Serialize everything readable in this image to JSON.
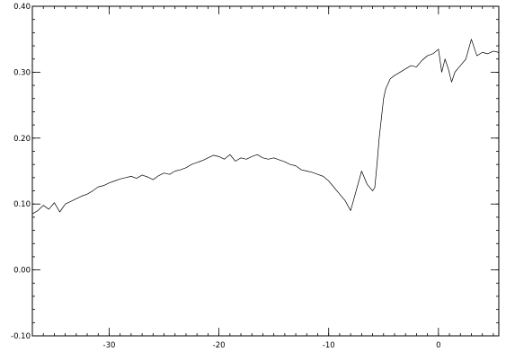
{
  "chart_data": {
    "type": "line",
    "title": "",
    "xlabel": "",
    "ylabel": "",
    "xlim": [
      -37,
      5.5
    ],
    "ylim": [
      -0.1,
      0.4
    ],
    "grid": false,
    "x_major_ticks": [
      -30,
      -20,
      -10,
      0
    ],
    "x_tick_labels": [
      "-30",
      "-20",
      "-10",
      "0"
    ],
    "x_minor_step": 1,
    "y_major_ticks": [
      -0.1,
      0.0,
      0.1,
      0.2,
      0.3,
      0.4
    ],
    "y_tick_labels": [
      "-0.10",
      "0.00",
      "0.10",
      "0.20",
      "0.30",
      "0.40"
    ],
    "y_minor_step": 0.02,
    "series": [
      {
        "color": "#000000",
        "x": [
          -37.0,
          -36.5,
          -36.0,
          -35.5,
          -35.0,
          -34.5,
          -34.0,
          -33.5,
          -33.0,
          -32.5,
          -32.0,
          -31.5,
          -31.0,
          -30.5,
          -30.0,
          -29.5,
          -29.0,
          -28.5,
          -28.0,
          -27.5,
          -27.0,
          -26.5,
          -26.0,
          -25.5,
          -25.0,
          -24.5,
          -24.0,
          -23.5,
          -23.0,
          -22.5,
          -22.0,
          -21.5,
          -21.0,
          -20.5,
          -20.0,
          -19.5,
          -19.0,
          -18.5,
          -18.0,
          -17.5,
          -17.0,
          -16.5,
          -16.0,
          -15.5,
          -15.0,
          -14.5,
          -14.0,
          -13.5,
          -13.0,
          -12.5,
          -12.0,
          -11.5,
          -11.0,
          -10.5,
          -10.0,
          -9.5,
          -9.0,
          -8.5,
          -8.0,
          -7.5,
          -7.0,
          -6.5,
          -6.0,
          -5.8,
          -5.6,
          -5.4,
          -5.2,
          -5.0,
          -4.8,
          -4.6,
          -4.4,
          -4.0,
          -3.5,
          -3.0,
          -2.5,
          -2.0,
          -1.5,
          -1.0,
          -0.5,
          0.0,
          0.3,
          0.6,
          0.9,
          1.2,
          1.5,
          2.0,
          2.5,
          3.0,
          3.5,
          4.0,
          4.5,
          5.0,
          5.5
        ],
        "y": [
          0.085,
          0.09,
          0.098,
          0.092,
          0.102,
          0.088,
          0.1,
          0.104,
          0.108,
          0.112,
          0.115,
          0.12,
          0.126,
          0.128,
          0.132,
          0.135,
          0.138,
          0.14,
          0.142,
          0.139,
          0.144,
          0.141,
          0.137,
          0.143,
          0.147,
          0.145,
          0.15,
          0.152,
          0.155,
          0.16,
          0.163,
          0.166,
          0.17,
          0.174,
          0.172,
          0.168,
          0.175,
          0.165,
          0.17,
          0.168,
          0.172,
          0.175,
          0.17,
          0.168,
          0.17,
          0.167,
          0.164,
          0.16,
          0.158,
          0.152,
          0.15,
          0.148,
          0.145,
          0.142,
          0.135,
          0.125,
          0.115,
          0.105,
          0.09,
          0.12,
          0.15,
          0.13,
          0.12,
          0.125,
          0.16,
          0.2,
          0.23,
          0.26,
          0.275,
          0.282,
          0.29,
          0.295,
          0.3,
          0.305,
          0.31,
          0.308,
          0.318,
          0.325,
          0.328,
          0.335,
          0.3,
          0.32,
          0.305,
          0.285,
          0.3,
          0.31,
          0.32,
          0.35,
          0.325,
          0.33,
          0.328,
          0.332,
          0.33
        ]
      }
    ]
  }
}
